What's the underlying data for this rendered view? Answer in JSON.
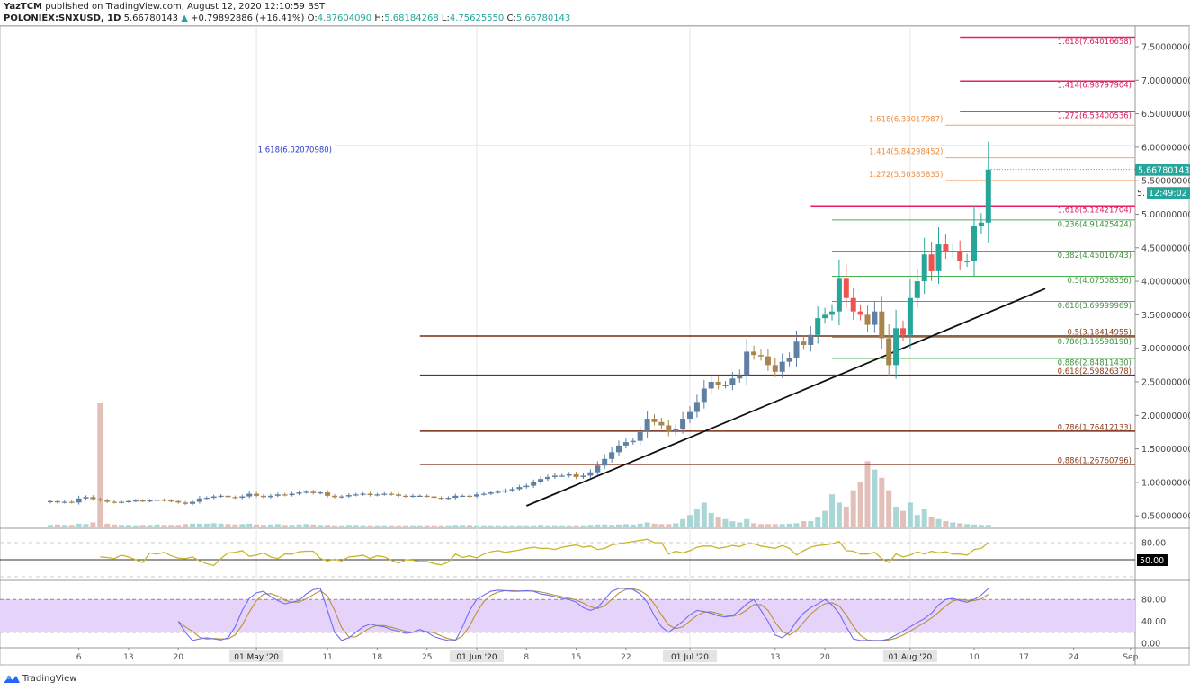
{
  "header": {
    "author": "YazTCM",
    "published": "published on TradingView.com, August 12, 2020 12:10:59 BST",
    "symbol": "POLONIEX:SNXUSD, 1D",
    "last": "5.66780143",
    "change": "+0.79892886 (+16.41%)",
    "o_label": "O:",
    "o": "4.87604090",
    "h_label": "H:",
    "h": "5.68184268",
    "l_label": "L:",
    "l": "4.75625550",
    "c_label": "C:",
    "c": "5.66780143"
  },
  "footer": {
    "brand": "TradingView"
  },
  "colors": {
    "up": "#26a69a",
    "down": "#ef5350",
    "up_muted": "#5f7fa3",
    "down_muted": "#a7854c",
    "rsi": "#c9b52a",
    "stoch_k": "#6c6cf0",
    "stoch_d": "#b8923a",
    "band": "#e6d3fa"
  },
  "chart_data": {
    "type": "candlestick",
    "first_day": "2020-04-02",
    "last_day": "2020-08-12",
    "ylim": [
      0.35,
      7.8
    ],
    "price_ticks": [
      "7.50000000",
      "7.00000000",
      "6.50000000",
      "6.00000000",
      "5.50000000",
      "5.00000000",
      "4.50000000",
      "4.00000000",
      "3.50000000",
      "3.00000000",
      "2.50000000",
      "2.00000000",
      "1.50000000",
      "1.00000000",
      "0.50000000"
    ],
    "price_tick_values": [
      7.5,
      7.0,
      6.5,
      6.0,
      5.5,
      5.0,
      4.5,
      4.0,
      3.5,
      3.0,
      2.5,
      2.0,
      1.5,
      1.0,
      0.5
    ],
    "current_price_label": "5.66780143",
    "countdown_label": "12:49:02",
    "countdown_prefix": "5.",
    "closes": [
      0.72,
      0.7,
      0.71,
      0.7,
      0.76,
      0.78,
      0.75,
      0.73,
      0.71,
      0.7,
      0.71,
      0.72,
      0.73,
      0.72,
      0.73,
      0.74,
      0.73,
      0.72,
      0.7,
      0.68,
      0.71,
      0.76,
      0.77,
      0.79,
      0.8,
      0.78,
      0.77,
      0.79,
      0.83,
      0.8,
      0.78,
      0.8,
      0.82,
      0.81,
      0.83,
      0.85,
      0.86,
      0.84,
      0.85,
      0.8,
      0.78,
      0.79,
      0.81,
      0.82,
      0.83,
      0.81,
      0.82,
      0.83,
      0.82,
      0.8,
      0.79,
      0.8,
      0.8,
      0.79,
      0.77,
      0.76,
      0.77,
      0.8,
      0.8,
      0.79,
      0.82,
      0.83,
      0.85,
      0.86,
      0.88,
      0.9,
      0.93,
      0.95,
      1.0,
      1.05,
      1.08,
      1.1,
      1.1,
      1.12,
      1.08,
      1.1,
      1.15,
      1.25,
      1.35,
      1.45,
      1.55,
      1.6,
      1.62,
      1.75,
      1.95,
      1.9,
      1.85,
      1.75,
      1.8,
      1.95,
      2.05,
      2.2,
      2.4,
      2.5,
      2.45,
      2.45,
      2.55,
      2.6,
      2.95,
      2.9,
      2.88,
      2.75,
      2.65,
      2.8,
      2.85,
      3.1,
      3.05,
      3.2,
      3.45,
      3.5,
      3.55,
      4.05,
      3.75,
      3.55,
      3.5,
      3.35,
      3.55,
      3.15,
      2.75,
      3.3,
      3.2,
      3.75,
      4.0,
      4.4,
      4.15,
      4.55,
      4.45,
      4.45,
      4.3,
      4.3,
      4.82,
      4.876,
      5.6678
    ],
    "volume": [
      0.6,
      0.7,
      0.6,
      0.6,
      0.9,
      0.8,
      1.2,
      30,
      0.9,
      0.7,
      0.6,
      0.6,
      0.5,
      0.6,
      0.6,
      0.7,
      0.6,
      0.6,
      0.6,
      0.8,
      0.9,
      0.9,
      0.9,
      1.0,
      0.9,
      0.8,
      0.7,
      0.8,
      0.9,
      0.7,
      0.6,
      0.7,
      0.8,
      0.6,
      0.6,
      0.7,
      0.8,
      0.7,
      0.6,
      0.6,
      0.5,
      0.5,
      0.6,
      0.6,
      0.5,
      0.5,
      0.5,
      0.5,
      0.5,
      0.5,
      0.5,
      0.5,
      0.5,
      0.5,
      0.5,
      0.5,
      0.5,
      0.6,
      0.6,
      0.6,
      0.5,
      0.5,
      0.5,
      0.5,
      0.5,
      0.5,
      0.5,
      0.5,
      0.5,
      0.6,
      0.5,
      0.5,
      0.5,
      0.5,
      0.5,
      0.5,
      0.6,
      0.7,
      0.7,
      0.6,
      0.7,
      0.8,
      0.7,
      0.9,
      1.2,
      0.9,
      0.8,
      0.8,
      1.0,
      2.0,
      3.0,
      4.5,
      6.0,
      3.5,
      2.5,
      2.0,
      1.5,
      1.2,
      2.0,
      1.0,
      0.8,
      0.8,
      0.8,
      0.8,
      0.9,
      1.0,
      1.5,
      1.5,
      2.5,
      4.0,
      8.0,
      6.0,
      5.0,
      9.0,
      11.0,
      16.0,
      14.0,
      12.0,
      9.0,
      5.0,
      4.0,
      6.0,
      3.0,
      4.5,
      2.5,
      2.0,
      1.5,
      1.2,
      1.0,
      0.8,
      0.7,
      0.6,
      0.6
    ],
    "fib_levels": [
      {
        "label": "1.618(7.64016658)",
        "value": 7.64016658,
        "group": "ext-pink",
        "start_day": 128
      },
      {
        "label": "1.414(6.98797904)",
        "value": 6.98797904,
        "group": "ext-pink",
        "start_day": 128
      },
      {
        "label": "1.272(6.53400536)",
        "value": 6.53400536,
        "group": "ext-pink",
        "start_day": 128
      },
      {
        "label": "1.618(6.33017987)",
        "value": 6.33017987,
        "group": "ext-orange",
        "start_day": 126
      },
      {
        "label": "1.618(6.02070980)",
        "value": 6.0207098,
        "group": "ext-blue",
        "start_day": 40
      },
      {
        "label": "1.414(5.84298452)",
        "value": 5.84298452,
        "group": "ext-orange",
        "start_day": 126
      },
      {
        "label": "1.272(5.50385835)",
        "value": 5.50385835,
        "group": "ext-orange",
        "start_day": 126
      },
      {
        "label": "1.618(5.12421704)",
        "value": 5.12421704,
        "group": "ext-pink",
        "start_day": 107
      },
      {
        "label": "0.236(4.91425424)",
        "value": 4.91425424,
        "group": "ret-green",
        "start_day": 110
      },
      {
        "label": "0.382(4.45016743)",
        "value": 4.45016743,
        "group": "ret-green",
        "start_day": 110
      },
      {
        "label": "0.5(4.07508356)",
        "value": 4.07508356,
        "group": "ret-green",
        "start_day": 110
      },
      {
        "label": "0.618(3.69999969)",
        "value": 3.69999969,
        "group": "ret-green",
        "start_day": 110
      },
      {
        "label": "0.5(3.18414955)",
        "value": 3.18414955,
        "group": "ret-brown",
        "start_day": 52
      },
      {
        "label": "0.786(3.16598198)",
        "value": 3.16598198,
        "group": "ret-green",
        "start_day": 110
      },
      {
        "label": "0.886(2.84811430)",
        "value": 2.8481143,
        "group": "ret-green",
        "start_day": 110
      },
      {
        "label": "0.618(2.59826378)",
        "value": 2.59826378,
        "group": "ret-brown",
        "start_day": 52
      },
      {
        "label": "0.786(1.76412133)",
        "value": 1.76412133,
        "group": "ret-brown",
        "start_day": 52
      },
      {
        "label": "0.886(1.26760796)",
        "value": 1.26760796,
        "group": "ret-brown",
        "start_day": 52
      }
    ],
    "trendline": [
      {
        "day": 67,
        "price": 0.65
      },
      {
        "day": 140,
        "price": 3.89
      }
    ],
    "x_ticks": [
      {
        "label": "6",
        "day": 4
      },
      {
        "label": "13",
        "day": 11
      },
      {
        "label": "20",
        "day": 18
      },
      {
        "label": "01 May '20",
        "day": 29,
        "major": true
      },
      {
        "label": "11",
        "day": 39
      },
      {
        "label": "18",
        "day": 46
      },
      {
        "label": "25",
        "day": 53
      },
      {
        "label": "01 Jun '20",
        "day": 60,
        "major": true
      },
      {
        "label": "8",
        "day": 67
      },
      {
        "label": "15",
        "day": 74
      },
      {
        "label": "22",
        "day": 81
      },
      {
        "label": "01 Jul '20",
        "day": 90,
        "major": true
      },
      {
        "label": "13",
        "day": 102
      },
      {
        "label": "20",
        "day": 109
      },
      {
        "label": "01 Aug '20",
        "day": 121,
        "major": true
      },
      {
        "label": "10",
        "day": 130
      },
      {
        "label": "17",
        "day": 137
      },
      {
        "label": "24",
        "day": 144
      },
      {
        "label": "Sep",
        "day": 152
      }
    ],
    "rsi": {
      "start_day": 7,
      "levels": [
        80,
        50,
        20
      ],
      "tick_labels": [
        "80.00",
        "50.00"
      ],
      "values": [
        55,
        54,
        52,
        58,
        55,
        50,
        45,
        62,
        60,
        63,
        57,
        53,
        52,
        55,
        48,
        43,
        40,
        52,
        62,
        63,
        66,
        56,
        58,
        62,
        55,
        52,
        60,
        60,
        64,
        65,
        65,
        52,
        48,
        51,
        48,
        55,
        56,
        58,
        52,
        57,
        55,
        49,
        44,
        50,
        49,
        47,
        47,
        43,
        41,
        46,
        60,
        54,
        57,
        53,
        60,
        64,
        66,
        63,
        65,
        67,
        70,
        72,
        70,
        70,
        68,
        72,
        74,
        76,
        72,
        74,
        68,
        70,
        76,
        78,
        80,
        82,
        84,
        86,
        80,
        80,
        60,
        65,
        62,
        66,
        72,
        74,
        74,
        70,
        72,
        75,
        73,
        78,
        78,
        74,
        72,
        70,
        75,
        70,
        58,
        66,
        72,
        75,
        76,
        78,
        82,
        66,
        65,
        60,
        60,
        63,
        52,
        45,
        60,
        55,
        58,
        64,
        60,
        65,
        62,
        64,
        60,
        60,
        58,
        68,
        70,
        80
      ]
    },
    "stoch": {
      "start_day": 18,
      "levels": [
        80,
        20
      ],
      "tick_labels": [
        "80.00",
        "40.00",
        "0.00"
      ],
      "tick_values": [
        80,
        40,
        0
      ],
      "k": [
        40,
        20,
        5,
        8,
        10,
        8,
        6,
        10,
        30,
        60,
        82,
        92,
        95,
        85,
        78,
        72,
        75,
        78,
        90,
        98,
        100,
        60,
        20,
        5,
        10,
        20,
        30,
        35,
        32,
        30,
        25,
        22,
        18,
        20,
        25,
        20,
        12,
        8,
        5,
        5,
        30,
        60,
        80,
        88,
        95,
        97,
        96,
        95,
        95,
        96,
        95,
        90,
        88,
        85,
        82,
        80,
        75,
        65,
        60,
        65,
        80,
        95,
        100,
        100,
        98,
        90,
        75,
        50,
        30,
        20,
        30,
        40,
        52,
        60,
        58,
        55,
        50,
        48,
        50,
        60,
        72,
        80,
        60,
        40,
        15,
        10,
        20,
        40,
        55,
        65,
        72,
        80,
        70,
        55,
        30,
        8,
        5,
        5,
        5,
        5,
        8,
        15,
        22,
        30,
        38,
        45,
        55,
        70,
        80,
        82,
        78,
        75,
        80,
        88,
        100
      ]
    }
  }
}
